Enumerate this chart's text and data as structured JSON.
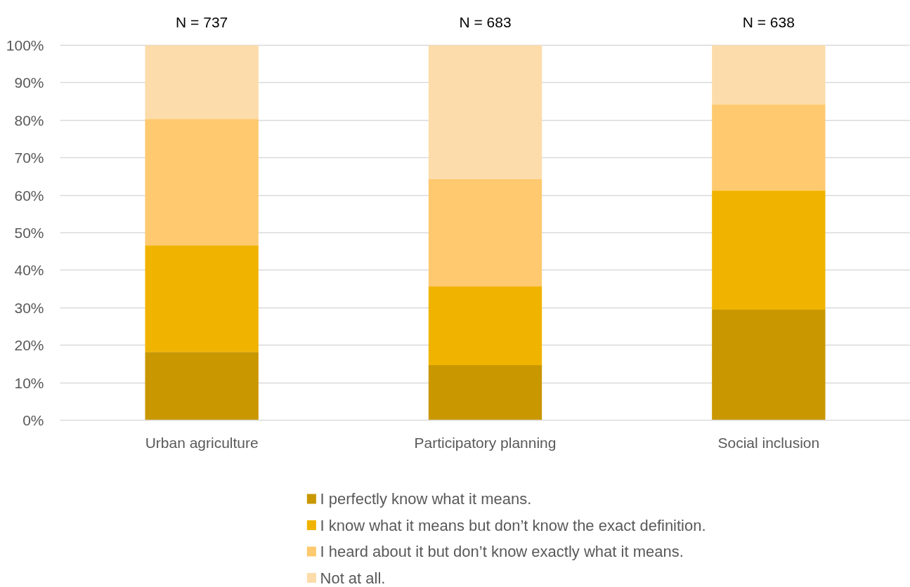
{
  "chart_data": {
    "type": "bar",
    "stacked": true,
    "categories": [
      "Urban agriculture",
      "Participatory planning",
      "Social inclusion"
    ],
    "series": [
      {
        "name": "I perfectly know what it means.",
        "color": "#c99700",
        "values": [
          18.2,
          14.7,
          29.5
        ]
      },
      {
        "name": "I know what it means but don’t know the exact definition.",
        "color": "#f0b400",
        "values": [
          28.5,
          21.0,
          31.8
        ]
      },
      {
        "name": "I heard about it but don’t know exactly what it means.",
        "color": "#fec96f",
        "values": [
          33.7,
          28.7,
          22.9
        ]
      },
      {
        "name": "Not at all.",
        "color": "#fddcab",
        "values": [
          19.6,
          35.6,
          15.8
        ]
      }
    ],
    "ylim": [
      0,
      100
    ],
    "yticks": [
      {
        "value": 0,
        "label": "0%"
      },
      {
        "value": 10,
        "label": "10%"
      },
      {
        "value": 20,
        "label": "20%"
      },
      {
        "value": 30,
        "label": "30%"
      },
      {
        "value": 40,
        "label": "40%"
      },
      {
        "value": 50,
        "label": "50%"
      },
      {
        "value": 60,
        "label": "60%"
      },
      {
        "value": 70,
        "label": "70%"
      },
      {
        "value": 80,
        "label": "80%"
      },
      {
        "value": 90,
        "label": "90%"
      },
      {
        "value": 100,
        "label": "100%"
      }
    ],
    "grid": "y",
    "legend": "bottom",
    "annotations": [
      {
        "text": "N = 737",
        "x": "Urban agriculture",
        "y": 100
      },
      {
        "text": "N = 683",
        "x": "Participatory planning",
        "y": 100
      },
      {
        "text": "N = 638",
        "x": "Social inclusion",
        "y": 100
      }
    ]
  }
}
